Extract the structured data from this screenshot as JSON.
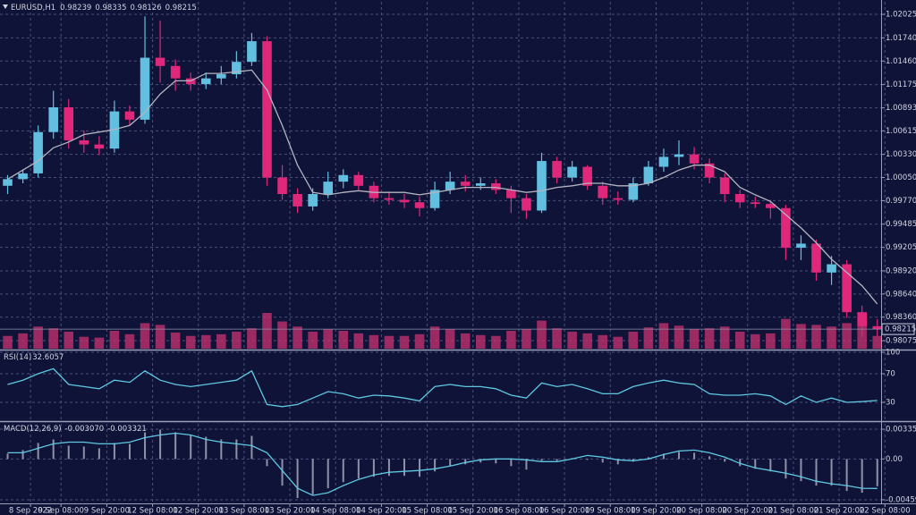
{
  "chart_data": [
    {
      "type": "candlestick",
      "title": "EURUSD,H1",
      "ohlc": [
        0.98239,
        0.98335,
        0.98126,
        0.98215
      ],
      "last_price": 0.98215,
      "xlim": [
        0,
        231
      ],
      "xticks": [
        {
          "value": 8,
          "label": "8 Sep 2022"
        },
        {
          "value": 16,
          "label": "9 Sep 08:00"
        },
        {
          "value": 28,
          "label": "9 Sep 20:00"
        },
        {
          "value": 40,
          "label": "12 Sep 08:00"
        },
        {
          "value": 52,
          "label": "12 Sep 20:00"
        },
        {
          "value": 64,
          "label": "13 Sep 08:00"
        },
        {
          "value": 76,
          "label": "13 Sep 20:00"
        },
        {
          "value": 88,
          "label": "14 Sep 08:00"
        },
        {
          "value": 100,
          "label": "14 Sep 20:00"
        },
        {
          "value": 112,
          "label": "15 Sep 08:00"
        },
        {
          "value": 124,
          "label": "15 Sep 20:00"
        },
        {
          "value": 136,
          "label": "16 Sep 08:00"
        },
        {
          "value": 148,
          "label": "16 Sep 20:00"
        },
        {
          "value": 160,
          "label": "19 Sep 08:00"
        },
        {
          "value": 172,
          "label": "19 Sep 20:00"
        },
        {
          "value": 184,
          "label": "20 Sep 08:00"
        },
        {
          "value": 196,
          "label": "20 Sep 20:00"
        },
        {
          "value": 208,
          "label": "21 Sep 08:00"
        },
        {
          "value": 220,
          "label": "21 Sep 20:00"
        },
        {
          "value": 232,
          "label": "22 Sep 08:00"
        }
      ],
      "ylim": [
        0.97978,
        1.02177
      ],
      "yticks": [
        1.02025,
        {
          "value": 1.0174,
          "label": "1.01740"
        },
        {
          "value": 1.0146,
          "label": "1.01460"
        },
        1.01175,
        1.00893,
        1.00615,
        {
          "value": 1.0033,
          "label": "1.00330"
        },
        {
          "value": 1.0005,
          "label": "1.00050"
        },
        {
          "value": 0.9977,
          "label": "0.99770"
        },
        0.99485,
        0.99205,
        {
          "value": 0.9892,
          "label": "0.98920"
        },
        {
          "value": 0.9864,
          "label": "0.98640"
        },
        {
          "value": 0.9836,
          "label": "0.98360"
        },
        0.98075
      ],
      "grid": true,
      "up_color": "#63bfe0",
      "down_color": "#e0287a",
      "candles": {
        "x": [
          2,
          6,
          10,
          14,
          18,
          22,
          26,
          30,
          34,
          38,
          42,
          46,
          50,
          54,
          58,
          62,
          66,
          70,
          74,
          78,
          82,
          86,
          90,
          94,
          98,
          102,
          106,
          110,
          114,
          118,
          122,
          126,
          130,
          134,
          138,
          142,
          146,
          150,
          154,
          158,
          162,
          166,
          170,
          174,
          178,
          182,
          186,
          190,
          194,
          198,
          202,
          206,
          210,
          214,
          218,
          222,
          226,
          230
        ],
        "open": [
          0.9995,
          1.0003,
          1.001,
          1.006,
          1.009,
          1.005,
          1.0045,
          1.004,
          1.0085,
          1.0075,
          1.015,
          1.014,
          1.0125,
          1.0118,
          1.0125,
          1.013,
          1.0145,
          1.017,
          1.0005,
          0.9985,
          0.997,
          0.9985,
          1.0,
          1.0008,
          0.9995,
          0.998,
          0.9978,
          0.9975,
          0.9968,
          0.999,
          1.0,
          0.9995,
          0.9998,
          0.999,
          0.998,
          0.9965,
          1.0025,
          1.0005,
          1.0018,
          0.9995,
          0.998,
          0.9978,
          0.9998,
          1.0018,
          1.003,
          1.0033,
          1.0022,
          1.0005,
          0.9985,
          0.9975,
          0.9973,
          0.9968,
          0.992,
          0.9925,
          0.989,
          0.99,
          0.9842,
          0.9825
        ],
        "high": [
          1.0008,
          1.0015,
          1.0068,
          1.011,
          1.01,
          1.0062,
          1.0055,
          1.0098,
          1.0092,
          1.02,
          1.0195,
          1.0148,
          1.0132,
          1.0132,
          1.014,
          1.0158,
          1.018,
          1.0176,
          1.002,
          0.9992,
          0.9992,
          1.0012,
          1.0015,
          1.0012,
          1.0,
          0.9988,
          0.9985,
          0.9982,
          1.0,
          1.0012,
          1.0008,
          1.0005,
          1.0003,
          0.9995,
          0.9985,
          1.0035,
          1.003,
          1.0025,
          1.002,
          1.0,
          0.9988,
          1.0005,
          1.0025,
          1.004,
          1.005,
          1.0042,
          1.0028,
          1.001,
          0.999,
          0.9982,
          0.9978,
          0.9972,
          0.9935,
          0.993,
          0.991,
          0.9905,
          0.985,
          0.98335
        ],
        "low": [
          0.9985,
          0.9998,
          1.0005,
          1.0052,
          1.004,
          1.0035,
          1.0032,
          1.0035,
          1.0068,
          1.007,
          1.012,
          1.011,
          1.011,
          1.0112,
          1.0118,
          1.0125,
          1.014,
          0.9995,
          0.9978,
          0.9962,
          0.9965,
          0.998,
          0.9992,
          0.999,
          0.9975,
          0.9972,
          0.9968,
          0.9958,
          0.9965,
          0.9985,
          0.9988,
          0.999,
          0.9985,
          0.9962,
          0.9955,
          0.9962,
          0.9998,
          1.0,
          0.999,
          0.9972,
          0.9972,
          0.9975,
          0.9995,
          1.0012,
          1.002,
          1.0015,
          0.9998,
          0.9975,
          0.9968,
          0.9968,
          0.9955,
          0.9905,
          0.9905,
          0.988,
          0.9875,
          0.9835,
          0.9812,
          0.98126
        ],
        "close": [
          1.0003,
          1.001,
          1.006,
          1.009,
          1.005,
          1.0045,
          1.004,
          1.0085,
          1.0075,
          1.015,
          1.014,
          1.0125,
          1.0118,
          1.0125,
          1.013,
          1.0145,
          1.017,
          1.0005,
          0.9985,
          0.997,
          0.9985,
          1.0,
          1.0008,
          0.9995,
          0.998,
          0.9978,
          0.9975,
          0.9968,
          0.999,
          1.0,
          0.9995,
          0.9998,
          0.999,
          0.998,
          0.9965,
          1.0025,
          1.0005,
          1.0018,
          0.9995,
          0.998,
          0.9978,
          0.9998,
          1.0018,
          1.003,
          1.0033,
          1.0022,
          1.0005,
          0.9985,
          0.9975,
          0.9973,
          0.9968,
          0.992,
          0.9925,
          0.989,
          0.99,
          0.9842,
          0.9825,
          0.98215
        ]
      },
      "ma": {
        "color": "#b4b4c0",
        "values": [
          1.0003,
          1.0014,
          1.0025,
          1.0041,
          1.0048,
          1.0057,
          1.006,
          1.0063,
          1.0068,
          1.0084,
          1.0106,
          1.0122,
          1.0122,
          1.0131,
          1.0131,
          1.0133,
          1.0135,
          1.0111,
          1.0068,
          1.002,
          0.9987,
          0.9984,
          0.9987,
          0.9989,
          0.9987,
          0.9987,
          0.9987,
          0.9984,
          0.9987,
          0.999,
          0.9993,
          0.9993,
          0.9993,
          0.999,
          0.9987,
          0.9989,
          0.9993,
          0.9995,
          0.9998,
          0.9998,
          0.9995,
          0.9995,
          0.9998,
          1.0005,
          1.0014,
          1.002,
          1.002,
          1.0012,
          0.9993,
          0.9984,
          0.9976,
          0.996,
          0.9944,
          0.9926,
          0.9906,
          0.989,
          0.9874,
          0.9852
        ]
      },
      "volumes": {
        "color": "#c8336f",
        "values": [
          1500,
          1800,
          2600,
          2400,
          2000,
          1400,
          1300,
          2100,
          1700,
          3000,
          2800,
          1900,
          1500,
          1600,
          1700,
          2000,
          2400,
          4200,
          3200,
          2600,
          2000,
          2300,
          2100,
          1800,
          1600,
          1500,
          1500,
          1700,
          2600,
          2300,
          1800,
          1600,
          1500,
          2100,
          2300,
          3300,
          2400,
          2000,
          1800,
          1600,
          1400,
          2000,
          2500,
          3000,
          2700,
          2300,
          2400,
          2600,
          2000,
          1700,
          1800,
          3500,
          2900,
          2800,
          2600,
          3000,
          2700,
          1500
        ]
      }
    },
    {
      "type": "line",
      "title": "RSI(14)",
      "current": 32.6057,
      "color": "#5ec8e0",
      "ylim": [
        5,
        100
      ],
      "yticks": [
        100,
        70,
        30
      ],
      "values": [
        55,
        61,
        70,
        77,
        55,
        52,
        49,
        61,
        58,
        74,
        61,
        55,
        52,
        55,
        58,
        61,
        74,
        27,
        24,
        27,
        36,
        45,
        42,
        36,
        40,
        39,
        36,
        32,
        52,
        55,
        52,
        52,
        49,
        40,
        36,
        57,
        52,
        55,
        49,
        42,
        42,
        52,
        57,
        61,
        57,
        55,
        42,
        40,
        40,
        42,
        39,
        27,
        39,
        30,
        36,
        30,
        31,
        32.6
      ]
    },
    {
      "type": "macd",
      "title": "MACD(12,26,9)",
      "current": [
        {
          "value": -0.00307,
          "label": "-0.003070"
        },
        {
          "value": -0.003321,
          "label": "-0.003321"
        }
      ],
      "ylim": [
        -0.0049,
        0.00396
      ],
      "yticks": [
        0.003353,
        {
          "value": 0,
          "label": "0.00"
        },
        -0.004594
      ],
      "histogram": {
        "color": "#c4c8d8",
        "values": [
          0.0006,
          0.001,
          0.0018,
          0.0022,
          0.0015,
          0.0014,
          0.0012,
          0.0018,
          0.0017,
          0.003,
          0.0033,
          0.003,
          0.0027,
          0.0025,
          0.0022,
          0.0022,
          0.0026,
          -0.0008,
          -0.003,
          -0.0044,
          -0.004,
          -0.0033,
          -0.0026,
          -0.0022,
          -0.002,
          -0.0019,
          -0.0019,
          -0.002,
          -0.0014,
          -0.0008,
          -0.0006,
          -0.0004,
          -0.0005,
          -0.0008,
          -0.0012,
          -0.0002,
          -0.0002,
          0.0001,
          -0.0001,
          -0.0004,
          -0.0006,
          -0.0003,
          0.0002,
          0.0006,
          0.0008,
          0.0007,
          0.0003,
          -0.0003,
          -0.0008,
          -0.0011,
          -0.0014,
          -0.0022,
          -0.0025,
          -0.003,
          -0.003,
          -0.0036,
          -0.0038,
          -0.00307
        ]
      },
      "signal": {
        "color": "#5ec8e0",
        "values": [
          0.0007,
          0.0007,
          0.0012,
          0.0017,
          0.0019,
          0.0019,
          0.0017,
          0.0017,
          0.0019,
          0.0024,
          0.0027,
          0.0029,
          0.0027,
          0.0022,
          0.0019,
          0.0017,
          0.0015,
          0.0007,
          -0.0013,
          -0.0033,
          -0.0041,
          -0.0038,
          -0.003,
          -0.0023,
          -0.0018,
          -0.0015,
          -0.0014,
          -0.0013,
          -0.0011,
          -0.0008,
          -0.0004,
          -0.0001,
          0,
          0,
          -0.0001,
          -0.0003,
          -0.0003,
          0,
          0.0004,
          0.0002,
          -0.0001,
          -0.0002,
          0,
          0.0005,
          0.0009,
          0.001,
          0.0007,
          0.0002,
          -0.0005,
          -0.001,
          -0.0013,
          -0.0016,
          -0.002,
          -0.0025,
          -0.0028,
          -0.003,
          -0.0033,
          -0.003321
        ]
      }
    }
  ]
}
